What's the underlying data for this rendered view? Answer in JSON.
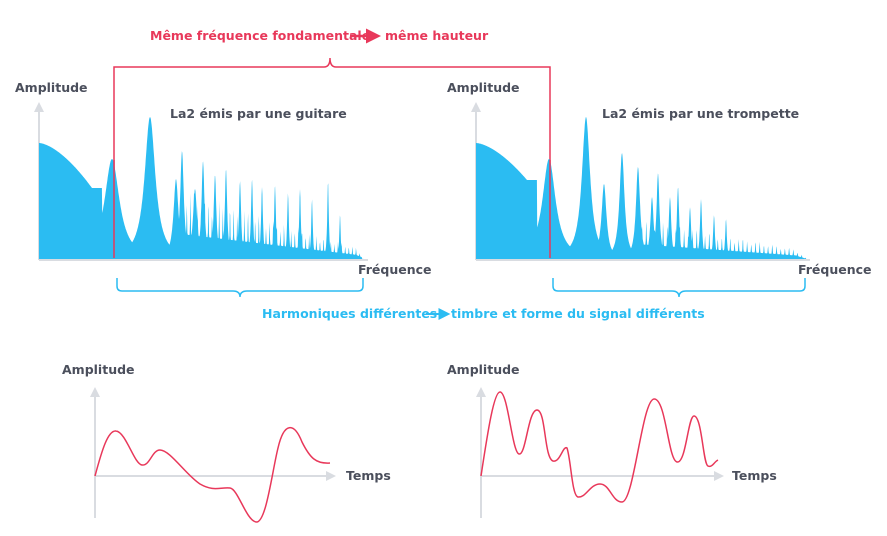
{
  "top_caption": {
    "left_text": "Même fréquence fondamentale",
    "right_text": "même hauteur"
  },
  "bottom_caption": {
    "left_text": "Harmoniques différentes",
    "right_text": "timbre et forme du signal différents"
  },
  "spectrum_guitar": {
    "title": "La2 émis par une guitare",
    "y_label": "Amplitude",
    "x_label": "Fréquence"
  },
  "spectrum_trumpet": {
    "title": "La2 émis par une trompette",
    "y_label": "Amplitude",
    "x_label": "Fréquence"
  },
  "signal_guitar": {
    "y_label": "Amplitude",
    "x_label": "Temps"
  },
  "signal_trumpet": {
    "y_label": "Amplitude",
    "x_label": "Temps"
  },
  "colors": {
    "spectrum_fill": "#2bbcf2",
    "signal_line": "#e8385a",
    "fundamental_marker": "#e8385a",
    "harmonics_bracket": "#2bbcf2",
    "axis": "#d9dce1",
    "text": "#4b4f5c"
  }
}
